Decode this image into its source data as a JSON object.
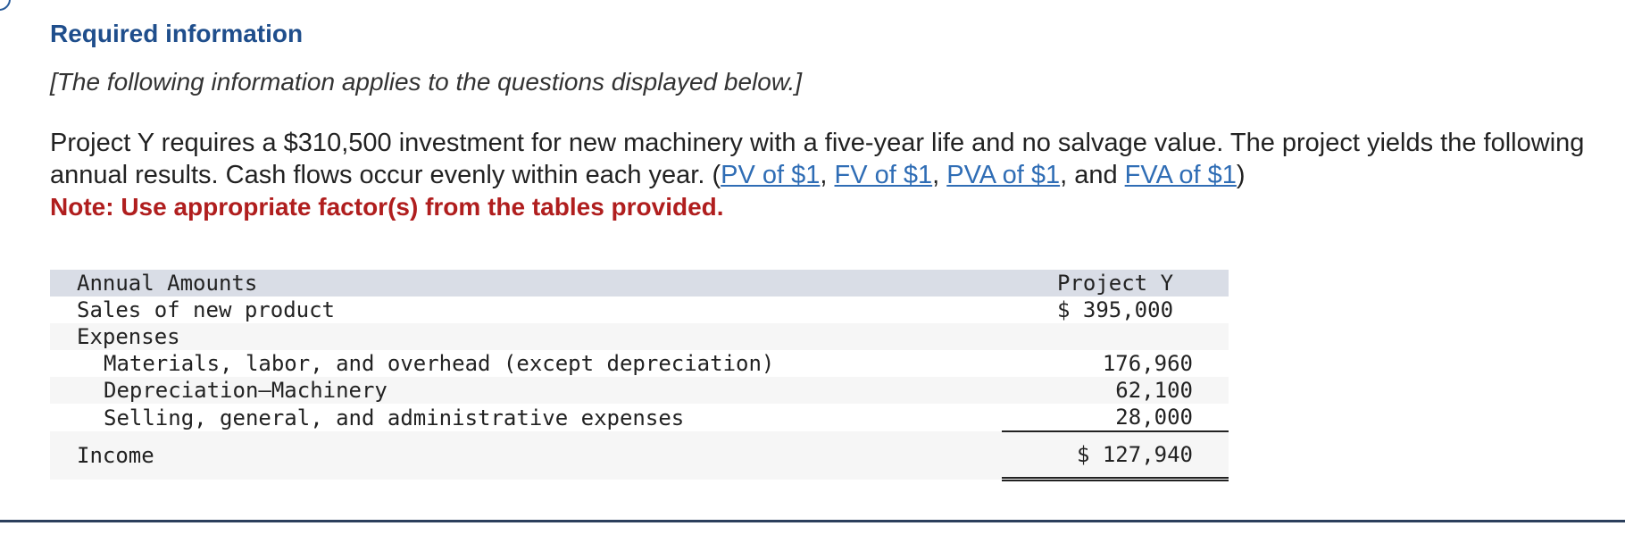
{
  "header": {
    "title": "Required information",
    "subtitle": "[The following information applies to the questions displayed below.]"
  },
  "problem": {
    "text_part1": "Project Y requires a $310,500 investment for new machinery with a five-year life and no salvage value. The project yields the following annual results. Cash flows occur evenly within each year. (",
    "links": [
      "PV of $1",
      "FV of $1",
      "PVA of $1",
      "FVA of $1"
    ],
    "sep1": ", ",
    "sep2": ", ",
    "sep3": ", and ",
    "close": ")",
    "note": "Note: Use appropriate factor(s) from the tables provided."
  },
  "table": {
    "header_label": "Annual Amounts",
    "header_value": "Project Y",
    "rows": [
      {
        "label": "Sales of new product",
        "value": "$ 395,000"
      },
      {
        "label": "Expenses",
        "value": ""
      },
      {
        "label": "Materials, labor, and overhead (except depreciation)",
        "value": "176,960"
      },
      {
        "label": "Depreciation—Machinery",
        "value": "62,100"
      },
      {
        "label": "Selling, general, and administrative expenses",
        "value": "28,000"
      },
      {
        "label": "Income",
        "value": "$ 127,940"
      }
    ]
  }
}
